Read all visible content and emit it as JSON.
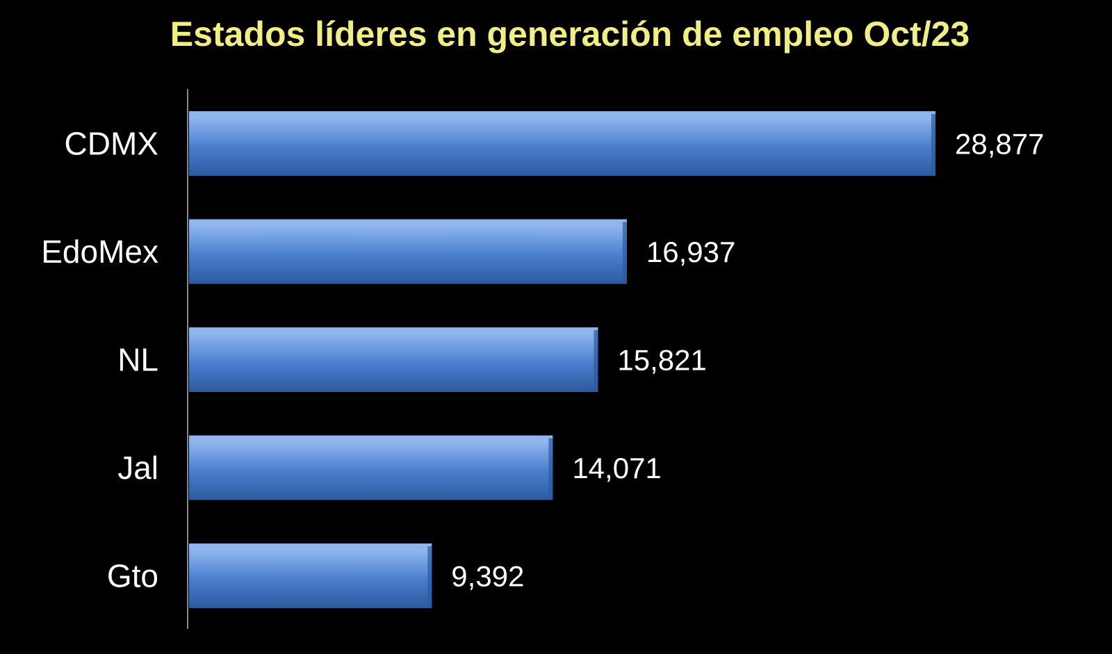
{
  "colors": {
    "background": "#000000",
    "title": "#f2ee86",
    "text": "#ffffff",
    "bar": "#4a7fcf",
    "bar_light": "#8fb6ee",
    "bar_dark": "#2c5a9e",
    "axis": "#8a8a8a"
  },
  "chart_data": {
    "type": "bar",
    "orientation": "horizontal",
    "title": "Estados líderes en generación de empleo Oct/23",
    "categories": [
      "CDMX",
      "EdoMex",
      "NL",
      "Jal",
      "Gto"
    ],
    "values": [
      28877,
      16937,
      15821,
      14071,
      9392
    ],
    "value_labels": [
      "28,877",
      "16,937",
      "15,821",
      "14,071",
      "9,392"
    ],
    "xlim": [
      0,
      28877
    ],
    "grid": false,
    "legend": "none",
    "data_labels": true
  }
}
